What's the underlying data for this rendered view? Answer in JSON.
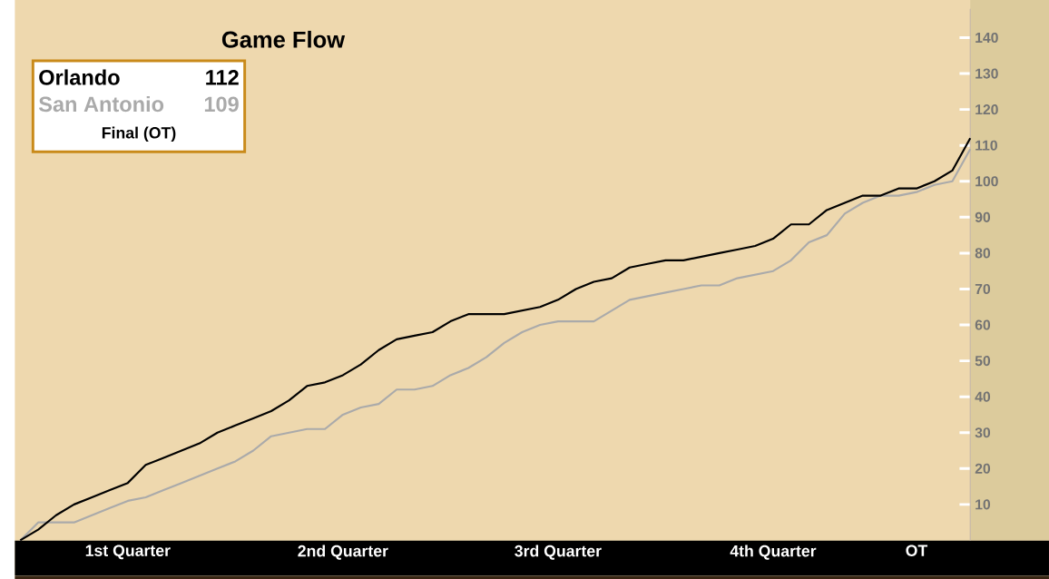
{
  "chart_data": {
    "type": "line",
    "title": "Game Flow",
    "categories": [
      null,
      null,
      null,
      null,
      null,
      null,
      "1st Quarter",
      null,
      null,
      null,
      null,
      null,
      null,
      null,
      null,
      null,
      null,
      null,
      "2nd Quarter",
      null,
      null,
      null,
      null,
      null,
      null,
      null,
      null,
      null,
      null,
      null,
      "3rd Quarter",
      null,
      null,
      null,
      null,
      null,
      null,
      null,
      null,
      null,
      null,
      null,
      "4th Quarter",
      null,
      null,
      null,
      null,
      null,
      null,
      null,
      "OT",
      null,
      null,
      null
    ],
    "ylim": [
      0,
      148
    ],
    "yticks": [
      10,
      20,
      30,
      40,
      50,
      60,
      70,
      80,
      90,
      100,
      110,
      120,
      130,
      140
    ],
    "series": [
      {
        "name": "Orlando",
        "color": "#000000",
        "values": [
          0,
          3,
          7,
          10,
          12,
          14,
          16,
          21,
          23,
          25,
          27,
          30,
          32,
          34,
          36,
          39,
          43,
          44,
          46,
          49,
          53,
          56,
          57,
          58,
          61,
          63,
          63,
          63,
          64,
          65,
          67,
          70,
          72,
          73,
          76,
          77,
          78,
          78,
          79,
          80,
          81,
          82,
          84,
          88,
          88,
          92,
          94,
          96,
          96,
          98,
          98,
          100,
          103,
          112
        ]
      },
      {
        "name": "San Antonio",
        "color": "#aaaaaa",
        "values": [
          0,
          5,
          5,
          5,
          7,
          9,
          11,
          12,
          14,
          16,
          18,
          20,
          22,
          25,
          29,
          30,
          31,
          31,
          35,
          37,
          38,
          42,
          42,
          43,
          46,
          48,
          51,
          55,
          58,
          60,
          61,
          61,
          61,
          64,
          67,
          68,
          69,
          70,
          71,
          71,
          73,
          74,
          75,
          78,
          83,
          85,
          91,
          94,
          96,
          96,
          97,
          99,
          100,
          109
        ]
      }
    ],
    "legend": "top left",
    "marker": "none",
    "line_style": "solid",
    "annotations": [
      "112",
      "109",
      "Final (OT)"
    ]
  }
}
